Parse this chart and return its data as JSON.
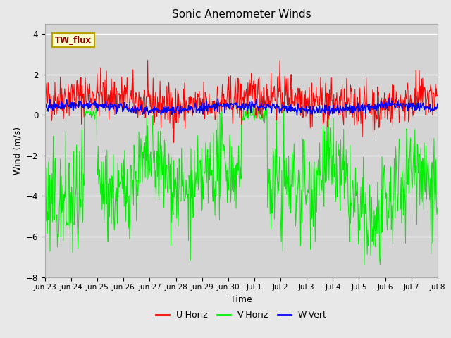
{
  "title": "Sonic Anemometer Winds",
  "xlabel": "Time",
  "ylabel": "Wind (m/s)",
  "ylim": [
    -8,
    4.5
  ],
  "yticks": [
    -8,
    -6,
    -4,
    -2,
    0,
    2,
    4
  ],
  "legend_label": "TW_flux",
  "series": {
    "U_color": "#ff0000",
    "V_color": "#00ee00",
    "W_color": "#0000ff"
  },
  "xtick_labels": [
    "Jun 23",
    "Jun 24",
    "Jun 25",
    "Jun 26",
    "Jun 27",
    "Jun 28",
    "Jun 29",
    "Jun 30",
    "Jul 1",
    "Jul 2",
    "Jul 3",
    "Jul 4",
    "Jul 5",
    "Jul 6",
    "Jul 7",
    "Jul 8"
  ],
  "seed": 42,
  "n_points": 800
}
